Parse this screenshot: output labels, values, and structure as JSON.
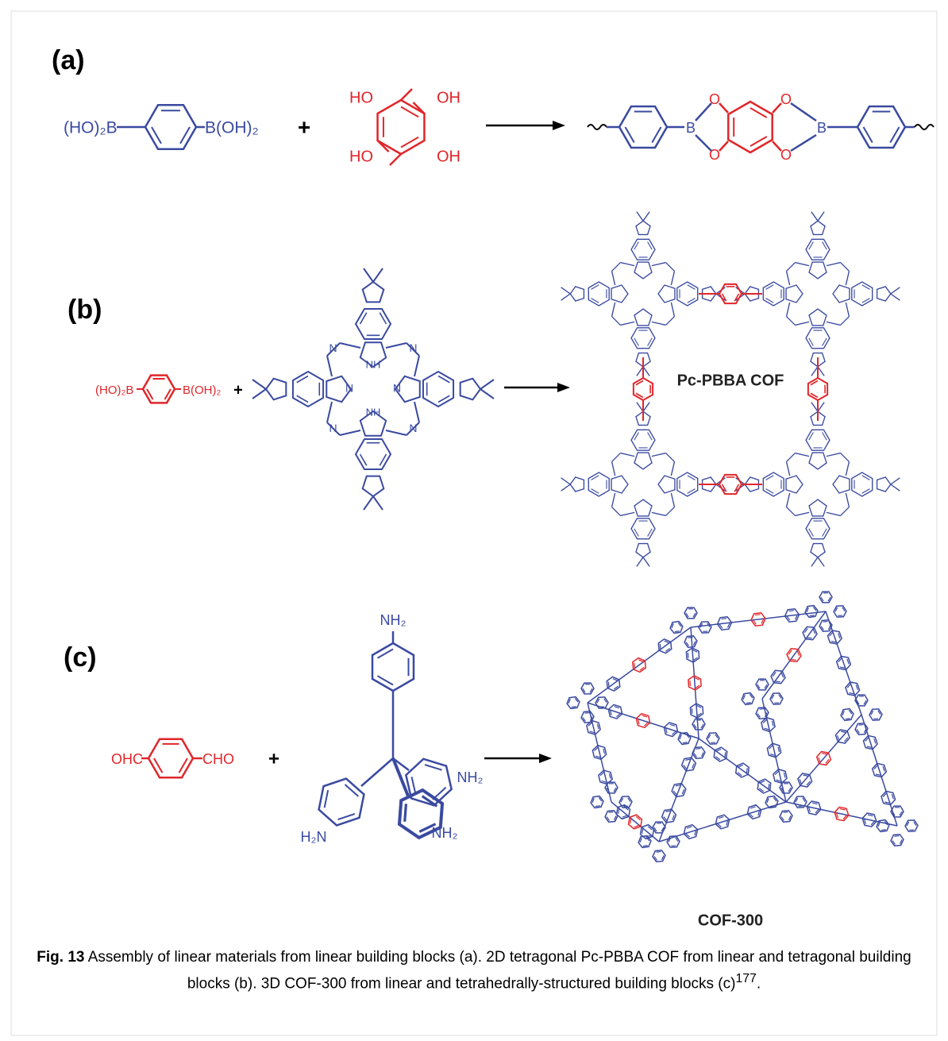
{
  "panel_a": {
    "label": "(a)",
    "reactant_1": {
      "left": "(HO)₂B",
      "right": "B(OH)₂"
    },
    "plus": "+",
    "reactant_2": {
      "substituents": [
        "HO",
        "OH",
        "HO",
        "OH"
      ]
    },
    "product": {
      "atoms": [
        "B",
        "O",
        "O",
        "O",
        "O",
        "B"
      ]
    }
  },
  "panel_b": {
    "label": "(b)",
    "reactant_1": {
      "left": "(HO)₂B",
      "right": "B(OH)₂"
    },
    "plus": "+",
    "reactant_2": {
      "atoms": [
        "N",
        "N",
        "N",
        "N",
        "N",
        "N",
        "NH",
        "NH"
      ]
    },
    "product": {
      "name": "Pc-PBBA COF"
    }
  },
  "panel_c": {
    "label": "(c)",
    "reactant_1": {
      "left": "OHC",
      "right": "CHO"
    },
    "plus": "+",
    "reactant_2": {
      "amines": [
        "NH₂",
        "H₂N",
        "NH₂",
        "NH₂"
      ]
    },
    "product": {
      "name": "COF-300"
    }
  },
  "caption": {
    "label": "Fig. 13",
    "text": "Assembly of linear materials from linear building blocks (a). 2D tetragonal Pc-PBBA COF from linear and tetragonal building blocks (b). 3D COF-300 from linear and tetrahedrally-structured building blocks (c)",
    "ref": "177",
    "end": "."
  }
}
